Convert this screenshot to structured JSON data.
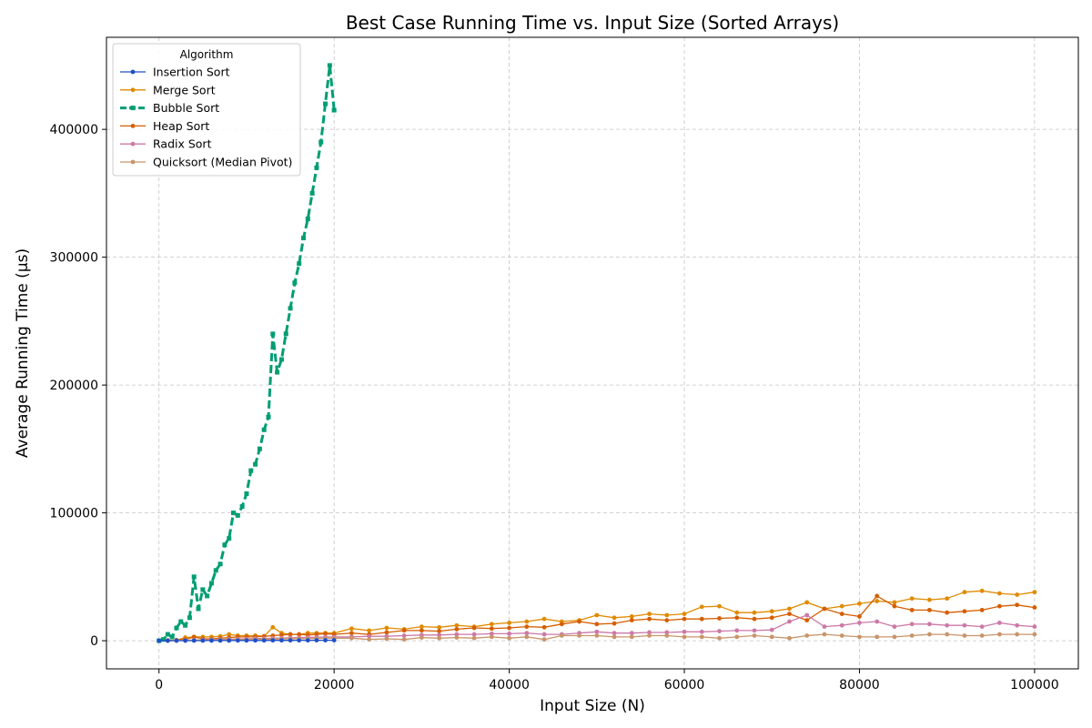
{
  "chart_data": {
    "type": "line",
    "title": "Best Case Running Time vs. Input Size (Sorted Arrays)",
    "xlabel": "Input Size (N)",
    "ylabel": "Average Running Time (μs)",
    "xlim": [
      -6000,
      105000
    ],
    "ylim": [
      -22000,
      472000
    ],
    "xticks": [
      0,
      20000,
      40000,
      60000,
      80000,
      100000
    ],
    "yticks": [
      0,
      100000,
      200000,
      300000,
      400000
    ],
    "grid": true,
    "legend": {
      "title": "Algorithm",
      "placement": "top-left"
    },
    "series": [
      {
        "name": "Insertion Sort",
        "color": "#1f4fc8",
        "style": "solid-dot",
        "x": [
          0,
          1000,
          2000,
          3000,
          4000,
          5000,
          6000,
          7000,
          8000,
          9000,
          10000,
          11000,
          12000,
          13000,
          14000,
          15000,
          16000,
          17000,
          18000,
          19000,
          20000
        ],
        "y": [
          0,
          20,
          40,
          60,
          80,
          100,
          120,
          140,
          160,
          180,
          200,
          220,
          240,
          260,
          280,
          300,
          320,
          340,
          360,
          380,
          400
        ]
      },
      {
        "name": "Merge Sort",
        "color": "#e08a00",
        "style": "solid-dot",
        "x": [
          1000,
          2000,
          3000,
          4000,
          5000,
          6000,
          7000,
          8000,
          9000,
          10000,
          11000,
          12000,
          13000,
          14000,
          15000,
          16000,
          17000,
          18000,
          19000,
          20000,
          22000,
          24000,
          26000,
          28000,
          30000,
          32000,
          34000,
          36000,
          38000,
          40000,
          42000,
          44000,
          46000,
          48000,
          50000,
          52000,
          54000,
          56000,
          58000,
          60000,
          62000,
          64000,
          66000,
          68000,
          70000,
          72000,
          74000,
          76000,
          78000,
          80000,
          82000,
          84000,
          86000,
          88000,
          90000,
          92000,
          94000,
          96000,
          98000,
          100000
        ],
        "y": [
          300,
          500,
          2500,
          3000,
          3000,
          3000,
          3500,
          5000,
          4000,
          4000,
          4000,
          3500,
          10500,
          6000,
          5000,
          5000,
          6000,
          6000,
          6000,
          6000,
          9500,
          8000,
          10000,
          9000,
          11000,
          10500,
          12000,
          11000,
          13000,
          14000,
          15000,
          17000,
          15000,
          16000,
          20000,
          18000,
          19000,
          21000,
          20000,
          21000,
          26500,
          27000,
          22000,
          22000,
          23000,
          25000,
          30000,
          25000,
          27000,
          29000,
          31000,
          30000,
          33000,
          32000,
          33000,
          38000,
          39000,
          37000,
          36000,
          38000
        ]
      },
      {
        "name": "Bubble Sort",
        "color": "#009e73",
        "style": "dashed-square",
        "x": [
          0,
          500,
          1000,
          1500,
          2000,
          2500,
          3000,
          3500,
          4000,
          4500,
          5000,
          5500,
          6000,
          6500,
          7000,
          7500,
          8000,
          8500,
          9000,
          9500,
          10000,
          10500,
          11000,
          11500,
          12000,
          12500,
          13000,
          13500,
          14000,
          14500,
          15000,
          15500,
          16000,
          16500,
          17000,
          17500,
          18000,
          18500,
          19000,
          19500,
          20000
        ],
        "y": [
          0,
          1000,
          5000,
          3000,
          10000,
          15000,
          12000,
          18000,
          50000,
          25000,
          40000,
          35000,
          45000,
          55000,
          60000,
          75000,
          80000,
          100000,
          98000,
          105000,
          115000,
          133000,
          138000,
          150000,
          165000,
          175000,
          240000,
          210000,
          220000,
          240000,
          260000,
          280000,
          295000,
          315000,
          330000,
          350000,
          370000,
          390000,
          420000,
          450000,
          415000
        ]
      },
      {
        "name": "Heap Sort",
        "color": "#d55e00",
        "style": "solid-dot",
        "x": [
          1000,
          2000,
          3000,
          4000,
          5000,
          6000,
          7000,
          8000,
          9000,
          10000,
          11000,
          12000,
          13000,
          14000,
          15000,
          16000,
          17000,
          18000,
          19000,
          20000,
          22000,
          24000,
          26000,
          28000,
          30000,
          32000,
          34000,
          36000,
          38000,
          40000,
          42000,
          44000,
          46000,
          48000,
          50000,
          52000,
          54000,
          56000,
          58000,
          60000,
          62000,
          64000,
          66000,
          68000,
          70000,
          72000,
          74000,
          76000,
          78000,
          80000,
          82000,
          84000,
          86000,
          88000,
          90000,
          92000,
          94000,
          96000,
          98000,
          100000
        ],
        "y": [
          200,
          500,
          1000,
          3000,
          1500,
          1500,
          2000,
          2500,
          3000,
          3000,
          3000,
          3500,
          4000,
          4500,
          5000,
          5000,
          4500,
          5000,
          5500,
          5000,
          6000,
          5000,
          6500,
          8000,
          8000,
          7500,
          9000,
          10000,
          9500,
          10000,
          11000,
          10500,
          13000,
          15000,
          13000,
          13500,
          16000,
          17000,
          16000,
          17000,
          17000,
          17500,
          18000,
          17000,
          18000,
          21000,
          16000,
          25000,
          21000,
          19000,
          35000,
          27000,
          24000,
          24000,
          22000,
          23000,
          24000,
          27000,
          28000,
          26000
        ]
      },
      {
        "name": "Radix Sort",
        "color": "#cc79a7",
        "style": "solid-dot",
        "x": [
          1000,
          2000,
          3000,
          4000,
          5000,
          6000,
          7000,
          8000,
          9000,
          10000,
          11000,
          12000,
          13000,
          14000,
          15000,
          16000,
          17000,
          18000,
          19000,
          20000,
          22000,
          24000,
          26000,
          28000,
          30000,
          32000,
          34000,
          36000,
          38000,
          40000,
          42000,
          44000,
          46000,
          48000,
          50000,
          52000,
          54000,
          56000,
          58000,
          60000,
          62000,
          64000,
          66000,
          68000,
          70000,
          72000,
          74000,
          76000,
          78000,
          80000,
          82000,
          84000,
          86000,
          88000,
          90000,
          92000,
          94000,
          96000,
          98000,
          100000
        ],
        "y": [
          100,
          200,
          300,
          500,
          700,
          900,
          1000,
          1200,
          1400,
          1500,
          1700,
          1800,
          2000,
          2100,
          2300,
          2400,
          2600,
          2700,
          2900,
          3000,
          3000,
          3500,
          3500,
          4000,
          4500,
          4500,
          5000,
          5000,
          5500,
          5500,
          6000,
          5000,
          5000,
          6000,
          7000,
          6000,
          6000,
          6500,
          6500,
          7000,
          7000,
          7500,
          8000,
          8000,
          8500,
          15000,
          20000,
          11000,
          12000,
          14000,
          15000,
          11000,
          13000,
          13000,
          12000,
          12000,
          11000,
          14000,
          12000,
          11000
        ]
      },
      {
        "name": "Quicksort (Median Pivot)",
        "color": "#c8956b",
        "style": "solid-dot",
        "x": [
          1000,
          2000,
          3000,
          4000,
          5000,
          6000,
          7000,
          8000,
          9000,
          10000,
          11000,
          12000,
          13000,
          14000,
          15000,
          16000,
          17000,
          18000,
          19000,
          20000,
          22000,
          24000,
          26000,
          28000,
          30000,
          32000,
          34000,
          36000,
          38000,
          40000,
          42000,
          44000,
          46000,
          48000,
          50000,
          52000,
          54000,
          56000,
          58000,
          60000,
          62000,
          64000,
          66000,
          68000,
          70000,
          72000,
          74000,
          76000,
          78000,
          80000,
          82000,
          84000,
          86000,
          88000,
          90000,
          92000,
          94000,
          96000,
          98000,
          100000
        ],
        "y": [
          100,
          200,
          300,
          400,
          500,
          600,
          700,
          800,
          900,
          1000,
          1100,
          1200,
          1300,
          1400,
          1500,
          1600,
          1700,
          1800,
          1900,
          2000,
          2000,
          1000,
          1500,
          1000,
          2500,
          2000,
          2500,
          2000,
          3000,
          2000,
          3000,
          1000,
          4000,
          4000,
          4000,
          3000,
          3000,
          4000,
          4000,
          3000,
          3000,
          2000,
          3000,
          4000,
          3000,
          2000,
          4000,
          5000,
          4000,
          3000,
          3000,
          3000,
          4000,
          5000,
          5000,
          4000,
          4000,
          5000,
          5000,
          5000
        ]
      }
    ]
  }
}
